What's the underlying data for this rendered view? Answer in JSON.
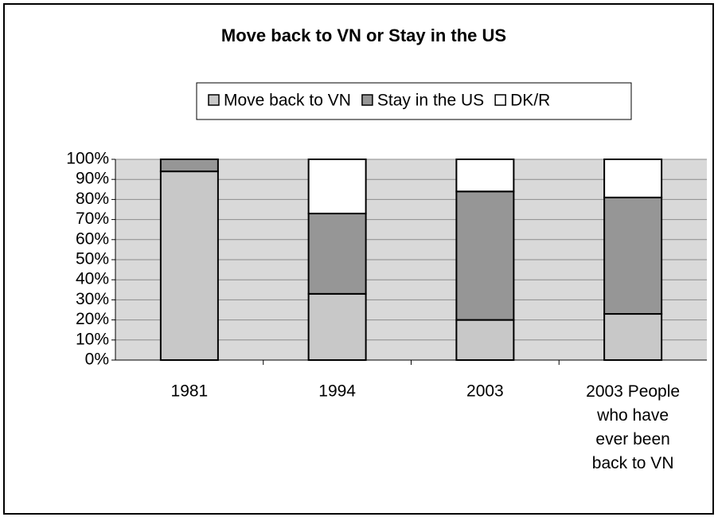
{
  "chart_data": {
    "type": "stacked-bar",
    "title": "Move back to VN or Stay in the US",
    "categories": [
      "1981",
      "1994",
      "2003",
      "2003 People who have ever been back to VN"
    ],
    "series": [
      {
        "name": "Move back to VN",
        "color": "#c8c8c8",
        "values": [
          94,
          33,
          20,
          23
        ]
      },
      {
        "name": "Stay in the US",
        "color": "#969696",
        "values": [
          6,
          40,
          64,
          58
        ]
      },
      {
        "name": "DK/R",
        "color": "#ffffff",
        "values": [
          0,
          27,
          16,
          19
        ]
      }
    ],
    "ylim": [
      0,
      100
    ],
    "yticks": [
      {
        "value": 0,
        "label": "0%"
      },
      {
        "value": 10,
        "label": "10%"
      },
      {
        "value": 20,
        "label": "20%"
      },
      {
        "value": 30,
        "label": "30%"
      },
      {
        "value": 40,
        "label": "40%"
      },
      {
        "value": 50,
        "label": "50%"
      },
      {
        "value": 60,
        "label": "60%"
      },
      {
        "value": 70,
        "label": "70%"
      },
      {
        "value": 80,
        "label": "80%"
      },
      {
        "value": 90,
        "label": "90%"
      },
      {
        "value": 100,
        "label": "100%"
      }
    ],
    "grid": true,
    "legend": "top"
  }
}
